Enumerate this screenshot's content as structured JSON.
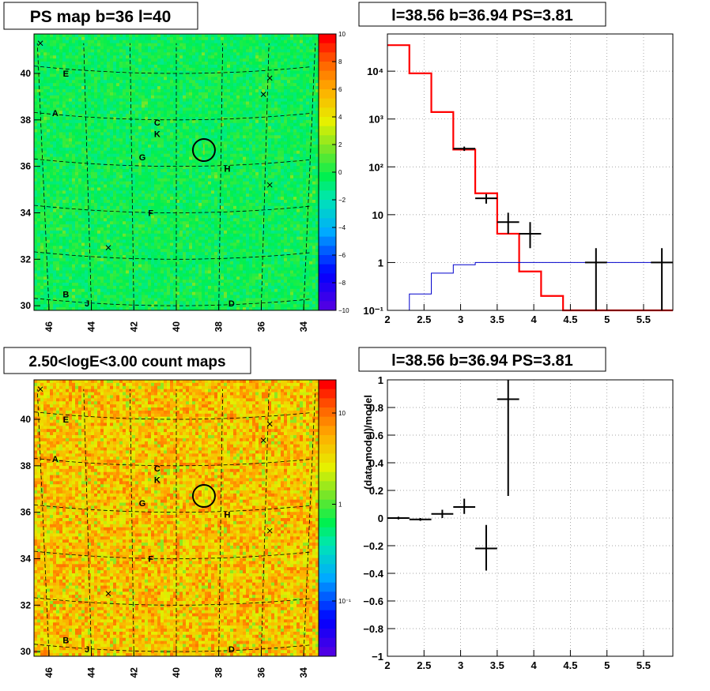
{
  "panels": {
    "ps_map": {
      "title": "PS map b=36 l=40",
      "x_ticks": [
        "46",
        "44",
        "42",
        "40",
        "38",
        "36",
        "34"
      ],
      "y_ticks": [
        "30",
        "32",
        "34",
        "36",
        "38",
        "40"
      ],
      "colorbar_ticks": [
        "10",
        "8",
        "6",
        "4",
        "2",
        "0",
        "−2",
        "−4",
        "−6",
        "−8",
        "−10"
      ],
      "source_labels": [
        "E",
        "A",
        "C",
        "K",
        "G",
        "H",
        "F",
        "B",
        "J",
        "D"
      ]
    },
    "count_map": {
      "title": "2.50<logE<3.00 count maps",
      "x_ticks": [
        "46",
        "44",
        "42",
        "40",
        "38",
        "36",
        "34"
      ],
      "y_ticks": [
        "30",
        "32",
        "34",
        "36",
        "38",
        "40"
      ],
      "colorbar_ticks": [
        "10",
        "1",
        "10⁻¹"
      ],
      "source_labels": [
        "E",
        "A",
        "C",
        "K",
        "G",
        "H",
        "F",
        "B",
        "J",
        "D"
      ]
    },
    "spectrum": {
      "title": "l=38.56 b=36.94 PS=3.81"
    },
    "residual": {
      "title": "l=38.56 b=36.94 PS=3.81"
    }
  },
  "chart_data": [
    {
      "type": "heatmap",
      "title": "PS map b=36 l=40",
      "xlabel": "",
      "ylabel": "",
      "xlim": [
        46.7,
        33.3
      ],
      "ylim": [
        29.8,
        41.7
      ],
      "zlim": [
        -10,
        10
      ],
      "colorbar": "rainbow",
      "sources": [
        {
          "label": "E",
          "l": 45.2,
          "b": 40.0
        },
        {
          "label": "A",
          "l": 45.7,
          "b": 38.3
        },
        {
          "label": "C",
          "l": 40.9,
          "b": 37.9
        },
        {
          "label": "K",
          "l": 40.9,
          "b": 37.4
        },
        {
          "label": "G",
          "l": 41.6,
          "b": 36.4
        },
        {
          "label": "H",
          "l": 37.6,
          "b": 35.9
        },
        {
          "label": "F",
          "l": 41.2,
          "b": 34.0
        },
        {
          "label": "B",
          "l": 45.2,
          "b": 30.5
        },
        {
          "label": "J",
          "l": 44.2,
          "b": 30.1
        },
        {
          "label": "D",
          "l": 37.4,
          "b": 30.1
        }
      ],
      "markers_x": [
        {
          "l": 46.4,
          "b": 41.3
        },
        {
          "l": 35.6,
          "b": 39.8
        },
        {
          "l": 35.9,
          "b": 39.1
        },
        {
          "l": 35.6,
          "b": 35.2
        },
        {
          "l": 43.2,
          "b": 32.5
        }
      ],
      "highlight_circle": {
        "l": 38.7,
        "b": 36.7
      }
    },
    {
      "type": "heatmap",
      "title": "2.50<logE<3.00 count maps",
      "xlabel": "",
      "ylabel": "",
      "xlim": [
        46.7,
        33.3
      ],
      "ylim": [
        29.8,
        41.7
      ],
      "zlim": [
        0.03,
        30
      ],
      "zscale": "log",
      "colorbar": "rainbow"
    },
    {
      "type": "line",
      "title": "l=38.56 b=36.94 PS=3.81",
      "xlabel": "",
      "ylabel": "",
      "xlim": [
        2,
        5.9
      ],
      "ylim": [
        0.1,
        60000
      ],
      "yscale": "log",
      "grid": true,
      "x_ticks": [
        "2",
        "2.5",
        "3",
        "3.5",
        "4",
        "4.5",
        "5",
        "5.5"
      ],
      "y_ticks": [
        "10⁻¹",
        "1",
        "10",
        "10²",
        "10³",
        "10⁴"
      ],
      "series": [
        {
          "type": "step",
          "color": "#ff0000",
          "bin_edges": [
            2.0,
            2.3,
            2.6,
            2.9,
            3.2,
            3.5,
            3.8,
            4.1,
            4.4,
            4.7,
            5.0,
            5.3,
            5.6,
            5.9
          ],
          "values": [
            35000,
            9000,
            1400,
            230,
            28,
            4,
            0.65,
            0.2,
            0.1,
            0.1,
            0.1,
            0.1,
            0.1
          ]
        },
        {
          "type": "step",
          "color": "#0000cc",
          "bin_edges": [
            2.0,
            2.3,
            2.6,
            2.9,
            3.2,
            3.5,
            3.8,
            4.1,
            4.4,
            4.7,
            5.0,
            5.3,
            5.6,
            5.9
          ],
          "values": [
            0.1,
            0.22,
            0.6,
            0.9,
            1.0,
            1.0,
            1.0,
            1.0,
            1.0,
            1.0,
            1.0,
            1.0,
            1.0
          ]
        },
        {
          "type": "errorbar",
          "color": "#000000",
          "points": [
            {
              "x": 3.05,
              "xerr": 0.15,
              "y": 240,
              "ylo": 215,
              "yhi": 265
            },
            {
              "x": 3.35,
              "xerr": 0.15,
              "y": 22,
              "ylo": 17,
              "yhi": 27
            },
            {
              "x": 3.65,
              "xerr": 0.15,
              "y": 7,
              "ylo": 4,
              "yhi": 11
            },
            {
              "x": 3.95,
              "xerr": 0.15,
              "y": 4,
              "ylo": 2,
              "yhi": 7
            },
            {
              "x": 4.85,
              "xerr": 0.15,
              "y": 1,
              "ylo": 0.1,
              "yhi": 2
            },
            {
              "x": 5.75,
              "xerr": 0.15,
              "y": 1,
              "ylo": 0.1,
              "yhi": 2
            }
          ]
        }
      ]
    },
    {
      "type": "scatter",
      "title": "l=38.56 b=36.94 PS=3.81",
      "xlabel": "",
      "ylabel": "(data-model)/model",
      "xlim": [
        2,
        5.9
      ],
      "ylim": [
        -1,
        1
      ],
      "grid": true,
      "x_ticks": [
        "2",
        "2.5",
        "3",
        "3.5",
        "4",
        "4.5",
        "5",
        "5.5"
      ],
      "y_ticks": [
        "−1",
        "−0.8",
        "−0.6",
        "−0.4",
        "−0.2",
        "0",
        "0.2",
        "0.4",
        "0.6",
        "0.8",
        "1"
      ],
      "points": [
        {
          "x": 2.15,
          "xerr": 0.15,
          "y": 0.0,
          "ylo": -0.01,
          "yhi": 0.01
        },
        {
          "x": 2.45,
          "xerr": 0.15,
          "y": -0.01,
          "ylo": -0.02,
          "yhi": 0.0
        },
        {
          "x": 2.75,
          "xerr": 0.15,
          "y": 0.03,
          "ylo": 0.0,
          "yhi": 0.06
        },
        {
          "x": 3.05,
          "xerr": 0.15,
          "y": 0.08,
          "ylo": 0.03,
          "yhi": 0.14
        },
        {
          "x": 3.35,
          "xerr": 0.15,
          "y": -0.22,
          "ylo": -0.38,
          "yhi": -0.05
        },
        {
          "x": 3.65,
          "xerr": 0.15,
          "y": 0.86,
          "ylo": 0.16,
          "yhi": 1.0
        }
      ]
    }
  ]
}
